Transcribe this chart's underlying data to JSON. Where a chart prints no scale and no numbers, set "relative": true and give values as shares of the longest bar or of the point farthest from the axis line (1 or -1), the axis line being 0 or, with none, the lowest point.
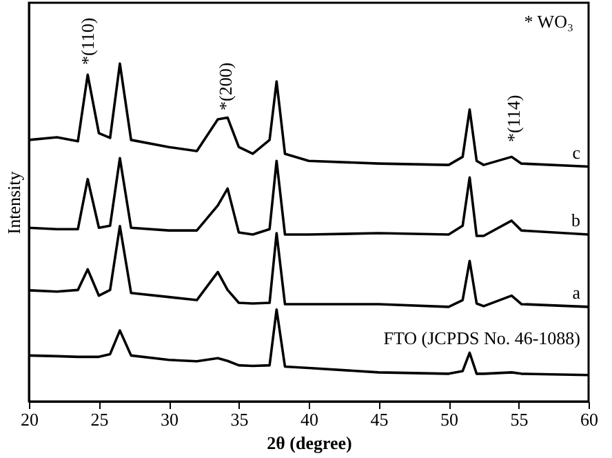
{
  "chart_data": {
    "type": "line",
    "relative": true,
    "xlabel": "2θ (degree)",
    "ylabel": "Intensity",
    "xlim": [
      20,
      60
    ],
    "xticks": [
      20,
      25,
      30,
      35,
      40,
      45,
      50,
      55,
      60
    ],
    "grid": false,
    "legend": false,
    "marker": "none",
    "line_style": "solid",
    "x": [
      20,
      22,
      23.5,
      24.2,
      25,
      25.8,
      26.5,
      27.3,
      30,
      32,
      33.5,
      34.2,
      35,
      36,
      37.2,
      37.7,
      38.3,
      40,
      45,
      50,
      51,
      51.5,
      52,
      52.5,
      54.5,
      55.2,
      60
    ],
    "series": [
      {
        "name": "c",
        "color": "#000000",
        "values": [
          0.774,
          0.782,
          0.77,
          0.967,
          0.794,
          0.78,
          1.0,
          0.774,
          0.753,
          0.741,
          0.835,
          0.84,
          0.753,
          0.733,
          0.774,
          0.947,
          0.733,
          0.712,
          0.704,
          0.7,
          0.724,
          0.864,
          0.712,
          0.7,
          0.724,
          0.704,
          0.695
        ]
      },
      {
        "name": "b",
        "color": "#000000",
        "values": [
          0.514,
          0.51,
          0.51,
          0.658,
          0.514,
          0.52,
          0.72,
          0.514,
          0.506,
          0.506,
          0.58,
          0.63,
          0.5,
          0.494,
          0.51,
          0.712,
          0.494,
          0.494,
          0.498,
          0.494,
          0.52,
          0.663,
          0.49,
          0.49,
          0.535,
          0.506,
          0.494
        ]
      },
      {
        "name": "a",
        "color": "#000000",
        "values": [
          0.329,
          0.325,
          0.33,
          0.391,
          0.313,
          0.33,
          0.519,
          0.321,
          0.309,
          0.3,
          0.383,
          0.33,
          0.292,
          0.29,
          0.292,
          0.498,
          0.288,
          0.288,
          0.288,
          0.28,
          0.3,
          0.416,
          0.29,
          0.282,
          0.313,
          0.288,
          0.28
        ]
      },
      {
        "name": "FTO (JCPDS No. 46-1088)",
        "color": "#000000",
        "values": [
          0.136,
          0.134,
          0.132,
          0.132,
          0.132,
          0.14,
          0.21,
          0.136,
          0.123,
          0.119,
          0.128,
          0.12,
          0.107,
          0.105,
          0.107,
          0.272,
          0.103,
          0.099,
          0.086,
          0.082,
          0.09,
          0.144,
          0.082,
          0.082,
          0.086,
          0.082,
          0.078
        ]
      }
    ],
    "annotations": [
      "*(110)",
      "*(200)",
      "*(114)",
      "* WO₃"
    ]
  }
}
